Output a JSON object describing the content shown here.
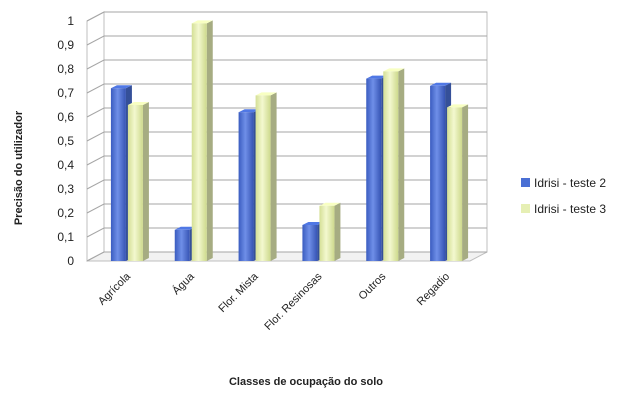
{
  "chart_data": {
    "type": "bar",
    "categories": [
      "Agrícola",
      "Água",
      "Flor. Mista",
      "Flor. Resinosas",
      "Outros",
      "Regadio"
    ],
    "series": [
      {
        "name": "Idrisi - teste 2",
        "values": [
          0.72,
          0.13,
          0.62,
          0.15,
          0.76,
          0.73
        ],
        "color": "#4a6fd4"
      },
      {
        "name": "Idrisi - teste 3",
        "values": [
          0.65,
          0.99,
          0.69,
          0.23,
          0.79,
          0.64
        ],
        "color": "#e6efb4"
      }
    ],
    "yticks": [
      "0",
      "0,1",
      "0,2",
      "0,3",
      "0,4",
      "0,5",
      "0,6",
      "0,7",
      "0,8",
      "0,9",
      "1"
    ],
    "xlabel": "Classes de ocupação do solo",
    "ylabel": "Precisão do utilizador",
    "ylim": [
      0,
      1
    ],
    "grid": true,
    "legend": "right",
    "style": "3d-clustered-column"
  }
}
